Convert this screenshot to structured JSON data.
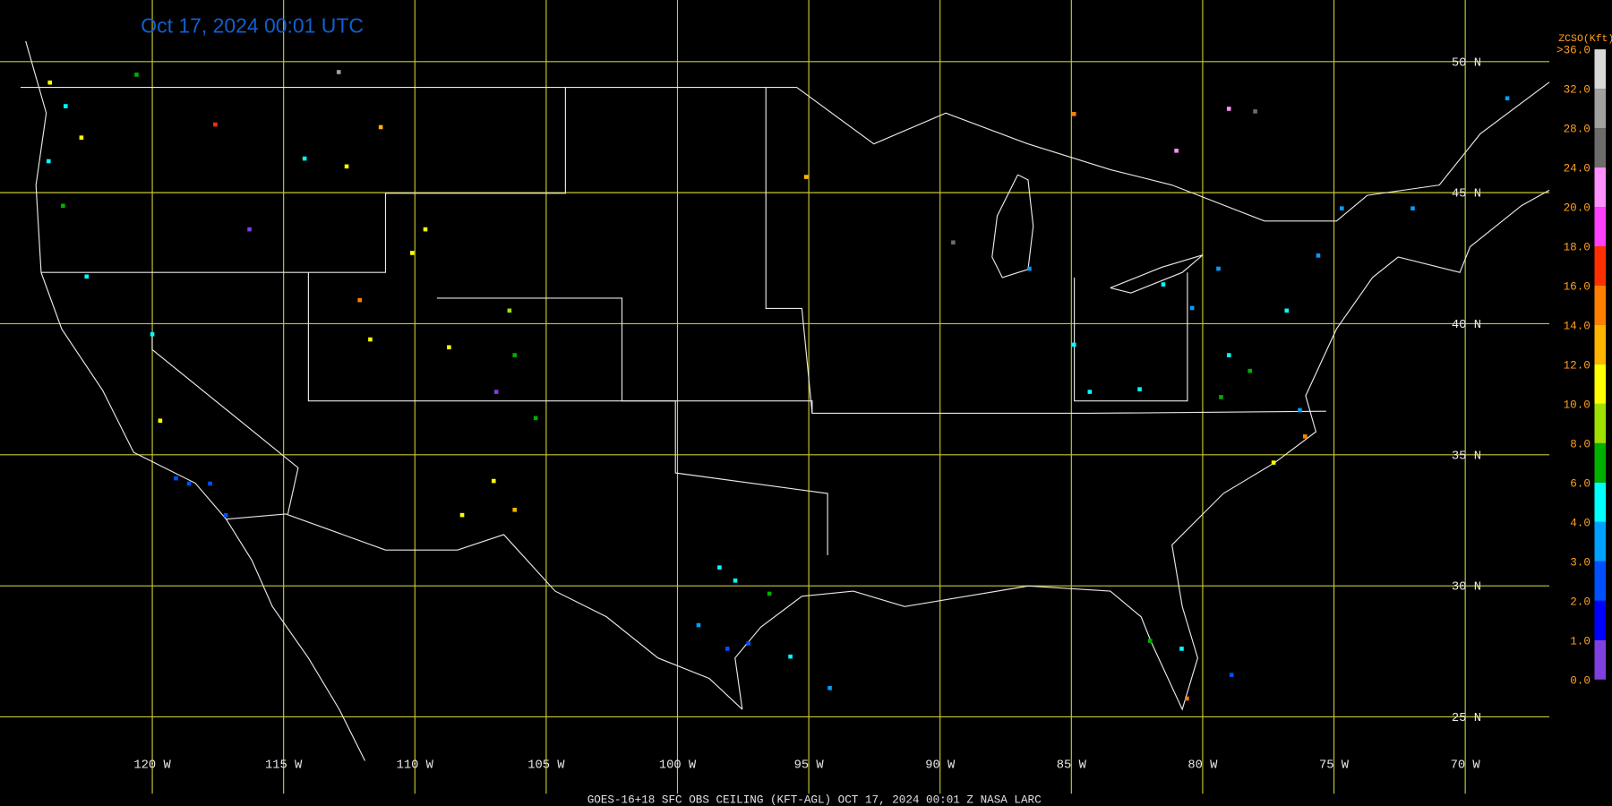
{
  "title": "Oct 17, 2024 00:01 UTC",
  "footer": "GOES-16+18  SFC OBS CEILING (KFT-AGL)   OCT 17, 2024 00:01 Z   NASA LARC",
  "map": {
    "xlim": [
      -125.8,
      -66.8
    ],
    "ylim": [
      21.6,
      52.35
    ],
    "grid_color": "#c8c832",
    "lon_ticks": [
      {
        "value": -120,
        "label": "120 W"
      },
      {
        "value": -115,
        "label": "115 W"
      },
      {
        "value": -110,
        "label": "110 W"
      },
      {
        "value": -105,
        "label": "105 W"
      },
      {
        "value": -100,
        "label": "100 W"
      },
      {
        "value": -95,
        "label": "95 W"
      },
      {
        "value": -90,
        "label": "90 W"
      },
      {
        "value": -85,
        "label": "85 W"
      },
      {
        "value": -80,
        "label": "80 W"
      },
      {
        "value": -75,
        "label": "75 W"
      },
      {
        "value": -70,
        "label": "70 W"
      }
    ],
    "lat_ticks": [
      {
        "value": 50,
        "label": "50 N"
      },
      {
        "value": 45,
        "label": "45 N"
      },
      {
        "value": 40,
        "label": "40 N"
      },
      {
        "value": 35,
        "label": "35 N"
      },
      {
        "value": 30,
        "label": "30 N"
      },
      {
        "value": 25,
        "label": "25 N"
      }
    ]
  },
  "legend": {
    "title": "ZCSO(Kft)",
    "ticks": [
      {
        "value": 36,
        "label": ">36.0"
      },
      {
        "value": 32,
        "label": "32.0"
      },
      {
        "value": 28,
        "label": "28.0"
      },
      {
        "value": 24,
        "label": "24.0"
      },
      {
        "value": 20,
        "label": "20.0"
      },
      {
        "value": 18,
        "label": "18.0"
      },
      {
        "value": 16,
        "label": "16.0"
      },
      {
        "value": 14,
        "label": "14.0"
      },
      {
        "value": 12,
        "label": "12.0"
      },
      {
        "value": 10,
        "label": "10.0"
      },
      {
        "value": 8,
        "label": "8.0"
      },
      {
        "value": 6,
        "label": "6.0"
      },
      {
        "value": 4,
        "label": "4.0"
      },
      {
        "value": 3,
        "label": "3.0"
      },
      {
        "value": 2,
        "label": "2.0"
      },
      {
        "value": 1,
        "label": "1.0"
      },
      {
        "value": 0,
        "label": "0.0"
      }
    ],
    "colors": [
      "#d8d8d8",
      "#a0a0a0",
      "#6c6c6c",
      "#ff90ff",
      "#ff40ff",
      "#ff3000",
      "#ff8000",
      "#ffb400",
      "#ffff00",
      "#a0e000",
      "#00b000",
      "#00ffff",
      "#00a0ff",
      "#0050ff",
      "#0000ff",
      "#8040e0"
    ]
  },
  "stations": [
    {
      "lon": -123.95,
      "lat": 46.2,
      "ceiling": 5
    },
    {
      "lon": -123.4,
      "lat": 44.5,
      "ceiling": 7
    },
    {
      "lon": -122.5,
      "lat": 41.8,
      "ceiling": 5
    },
    {
      "lon": -120.0,
      "lat": 39.6,
      "ceiling": 5
    },
    {
      "lon": -119.7,
      "lat": 36.3,
      "ceiling": 11
    },
    {
      "lon": -119.1,
      "lat": 34.1,
      "ceiling": 2.5
    },
    {
      "lon": -118.6,
      "lat": 33.9,
      "ceiling": 2.5
    },
    {
      "lon": -117.8,
      "lat": 33.9,
      "ceiling": 2.5
    },
    {
      "lon": -117.2,
      "lat": 32.7,
      "ceiling": 2.5
    },
    {
      "lon": -117.6,
      "lat": 47.6,
      "ceiling": 17
    },
    {
      "lon": -116.3,
      "lat": 43.6,
      "ceiling": 0.5
    },
    {
      "lon": -114.2,
      "lat": 46.3,
      "ceiling": 5
    },
    {
      "lon": -112.6,
      "lat": 46.0,
      "ceiling": 11
    },
    {
      "lon": -111.3,
      "lat": 47.5,
      "ceiling": 13
    },
    {
      "lon": -109.6,
      "lat": 43.6,
      "ceiling": 11
    },
    {
      "lon": -110.1,
      "lat": 42.7,
      "ceiling": 11
    },
    {
      "lon": -112.1,
      "lat": 40.9,
      "ceiling": 15
    },
    {
      "lon": -111.7,
      "lat": 39.4,
      "ceiling": 11
    },
    {
      "lon": -108.7,
      "lat": 39.1,
      "ceiling": 11
    },
    {
      "lon": -106.9,
      "lat": 37.4,
      "ceiling": 0.5
    },
    {
      "lon": -106.2,
      "lat": 38.8,
      "ceiling": 7
    },
    {
      "lon": -106.4,
      "lat": 40.5,
      "ceiling": 9
    },
    {
      "lon": -105.4,
      "lat": 36.4,
      "ceiling": 7
    },
    {
      "lon": -107.0,
      "lat": 34.0,
      "ceiling": 11
    },
    {
      "lon": -106.2,
      "lat": 32.9,
      "ceiling": 13
    },
    {
      "lon": -108.2,
      "lat": 32.7,
      "ceiling": 11
    },
    {
      "lon": -98.4,
      "lat": 30.7,
      "ceiling": 5
    },
    {
      "lon": -97.8,
      "lat": 30.2,
      "ceiling": 5
    },
    {
      "lon": -96.5,
      "lat": 29.7,
      "ceiling": 7
    },
    {
      "lon": -97.3,
      "lat": 27.8,
      "ceiling": 2.5
    },
    {
      "lon": -98.1,
      "lat": 27.6,
      "ceiling": 2.5
    },
    {
      "lon": -99.2,
      "lat": 28.5,
      "ceiling": 3.5
    },
    {
      "lon": -95.7,
      "lat": 27.3,
      "ceiling": 5
    },
    {
      "lon": -94.2,
      "lat": 26.1,
      "ceiling": 3.5
    },
    {
      "lon": -95.1,
      "lat": 45.6,
      "ceiling": 13
    },
    {
      "lon": -89.5,
      "lat": 43.1,
      "ceiling": 26
    },
    {
      "lon": -86.6,
      "lat": 42.1,
      "ceiling": 3.5
    },
    {
      "lon": -84.9,
      "lat": 48.0,
      "ceiling": 15
    },
    {
      "lon": -81.0,
      "lat": 46.6,
      "ceiling": 21
    },
    {
      "lon": -79.0,
      "lat": 48.2,
      "ceiling": 21
    },
    {
      "lon": -78.0,
      "lat": 48.1,
      "ceiling": 26
    },
    {
      "lon": -81.5,
      "lat": 41.5,
      "ceiling": 5
    },
    {
      "lon": -80.4,
      "lat": 40.6,
      "ceiling": 3.5
    },
    {
      "lon": -79.4,
      "lat": 42.1,
      "ceiling": 3.5
    },
    {
      "lon": -76.8,
      "lat": 40.5,
      "ceiling": 5
    },
    {
      "lon": -84.9,
      "lat": 39.2,
      "ceiling": 5
    },
    {
      "lon": -84.3,
      "lat": 37.4,
      "ceiling": 5
    },
    {
      "lon": -82.4,
      "lat": 37.5,
      "ceiling": 5
    },
    {
      "lon": -79.0,
      "lat": 38.8,
      "ceiling": 5
    },
    {
      "lon": -79.3,
      "lat": 37.2,
      "ceiling": 7
    },
    {
      "lon": -78.2,
      "lat": 38.2,
      "ceiling": 7
    },
    {
      "lon": -76.3,
      "lat": 36.7,
      "ceiling": 3.5
    },
    {
      "lon": -76.1,
      "lat": 35.7,
      "ceiling": 15
    },
    {
      "lon": -77.3,
      "lat": 34.7,
      "ceiling": 11
    },
    {
      "lon": -82.0,
      "lat": 27.9,
      "ceiling": 7
    },
    {
      "lon": -80.8,
      "lat": 27.6,
      "ceiling": 5
    },
    {
      "lon": -80.6,
      "lat": 25.7,
      "ceiling": 15
    },
    {
      "lon": -78.9,
      "lat": 26.6,
      "ceiling": 2.5
    },
    {
      "lon": -74.7,
      "lat": 44.4,
      "ceiling": 3.5
    },
    {
      "lon": -72.0,
      "lat": 44.4,
      "ceiling": 3.5
    },
    {
      "lon": -68.4,
      "lat": 48.6,
      "ceiling": 3.5
    },
    {
      "lon": -75.6,
      "lat": 42.6,
      "ceiling": 3.5
    },
    {
      "lon": -120.6,
      "lat": 49.5,
      "ceiling": 7
    },
    {
      "lon": -123.9,
      "lat": 49.2,
      "ceiling": 11
    },
    {
      "lon": -123.3,
      "lat": 48.3,
      "ceiling": 5
    },
    {
      "lon": -122.7,
      "lat": 47.1,
      "ceiling": 11
    },
    {
      "lon": -112.9,
      "lat": 49.6,
      "ceiling": 30
    }
  ]
}
